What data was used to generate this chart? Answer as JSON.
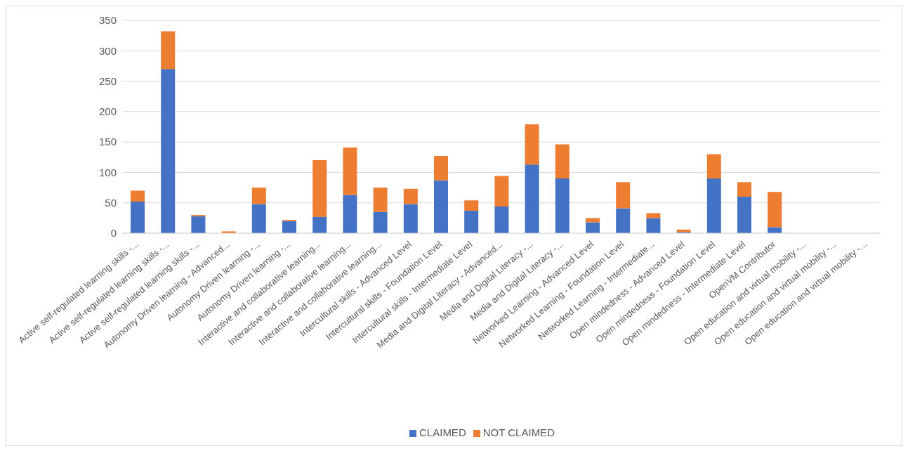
{
  "chart_data": {
    "type": "bar",
    "stacked": true,
    "categories": [
      "Active self-regulated learning skills -...",
      "Active self-regulated learning skills -...",
      "Active self-regulated learning skills -...",
      "Autonomy Driven learning - Advanced...",
      "Autonomy Driven learning -...",
      "Autonomy Driven learning -...",
      "Interactive and collaborative learning...",
      "Interactive and collaborative learning...",
      "Interactive and collaborative learning...",
      "Intercultural skills - Advanced Level",
      "Intercultural skills - Foundation Level",
      "Intercultural skills - Intermediate Level",
      "Media and Digital Literacy - Advanced...",
      "Media and Digital Literacy -...",
      "Media and Digital Literacy -...",
      "Networked Learning - Advanced Level",
      "Networked Learning - Foundation Level",
      "Networked Learning - Intermediate...",
      "Open mindedness - Advanced Level",
      "Open mindedness - Foundation Level",
      "Open mindedness - Intermediate Level",
      "OpenVM Contributor",
      "Open education and virtual mobility -...",
      "Open education and virtual mobility -...",
      "Open education and virtual mobility -..."
    ],
    "series": [
      {
        "name": "CLAIMED",
        "color": "#4472c4",
        "values": [
          52,
          270,
          28,
          0,
          48,
          20,
          27,
          63,
          35,
          48,
          87,
          37,
          44,
          113,
          90,
          18,
          41,
          25,
          2,
          90,
          60,
          10,
          0,
          0,
          0
        ]
      },
      {
        "name": "NOT CLAIMED",
        "color": "#ed7d31",
        "values": [
          18,
          62,
          2,
          3,
          27,
          2,
          93,
          78,
          40,
          25,
          40,
          17,
          50,
          66,
          56,
          7,
          43,
          8,
          4,
          40,
          24,
          58,
          0,
          0,
          0
        ]
      }
    ],
    "ylim": [
      0,
      350
    ],
    "yticks": [
      0,
      50,
      100,
      150,
      200,
      250,
      300,
      350
    ],
    "grid": "y",
    "legend": "bottom"
  }
}
